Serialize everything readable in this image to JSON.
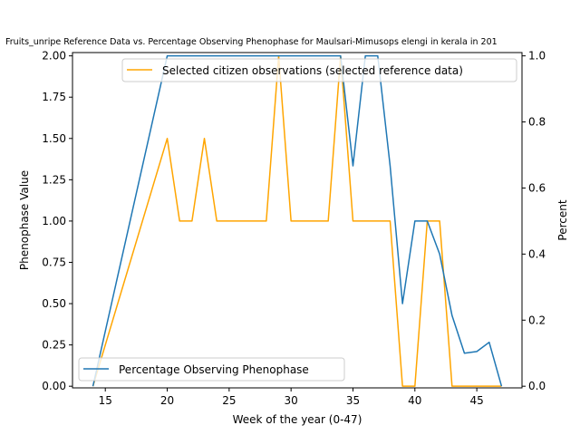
{
  "chart_data": {
    "type": "line",
    "title": "Fruits_unripe Reference Data vs. Percentage Observing Phenophase for Maulsari-Mimusops elengi in kerala in 201",
    "xlabel": "Week of the year (0-47)",
    "ylabel_left": "Phenophase Value",
    "ylabel_right": "Percent",
    "xlim": [
      12.35,
      48.65
    ],
    "ylim_left": [
      -0.01,
      2.02
    ],
    "ylim_right": [
      -0.005,
      1.01
    ],
    "x_ticks": [
      15,
      20,
      25,
      30,
      35,
      40,
      45
    ],
    "y_left_ticks": [
      "0.00",
      "0.25",
      "0.50",
      "0.75",
      "1.00",
      "1.25",
      "1.50",
      "1.75",
      "2.00"
    ],
    "y_right_ticks": [
      "0.0",
      "0.2",
      "0.4",
      "0.6",
      "0.8",
      "1.0"
    ],
    "grid": false,
    "series": [
      {
        "name": "Selected citizen observations (selected reference data)",
        "axis": "left",
        "color": "#ffa500",
        "legend_position": "upper-right",
        "points": [
          [
            14,
            0
          ],
          [
            20,
            1.5
          ],
          [
            21,
            1
          ],
          [
            22,
            1
          ],
          [
            23,
            1.5
          ],
          [
            24,
            1
          ],
          [
            25,
            1
          ],
          [
            26,
            1
          ],
          [
            27,
            1
          ],
          [
            28,
            1
          ],
          [
            29,
            2
          ],
          [
            30,
            1
          ],
          [
            31,
            1
          ],
          [
            32,
            1
          ],
          [
            33,
            1
          ],
          [
            34,
            2
          ],
          [
            35,
            1
          ],
          [
            36,
            1
          ],
          [
            37,
            1
          ],
          [
            38,
            1
          ],
          [
            39,
            0
          ],
          [
            40,
            0
          ],
          [
            41,
            1
          ],
          [
            42,
            1
          ],
          [
            43,
            0
          ],
          [
            44,
            0
          ],
          [
            45,
            0
          ],
          [
            46,
            0
          ],
          [
            47,
            0
          ]
        ]
      },
      {
        "name": "Percentage Observing Phenophase",
        "axis": "right",
        "color": "#1f77b4",
        "legend_position": "lower-left",
        "points": [
          [
            14,
            0
          ],
          [
            20,
            1
          ],
          [
            21,
            1
          ],
          [
            22,
            1
          ],
          [
            23,
            1
          ],
          [
            24,
            1
          ],
          [
            25,
            1
          ],
          [
            26,
            1
          ],
          [
            27,
            1
          ],
          [
            28,
            1
          ],
          [
            29,
            1
          ],
          [
            30,
            1
          ],
          [
            31,
            1
          ],
          [
            32,
            1
          ],
          [
            33,
            1
          ],
          [
            34,
            1
          ],
          [
            35,
            0.667
          ],
          [
            36,
            1
          ],
          [
            37,
            1
          ],
          [
            38,
            0.667
          ],
          [
            39,
            0.25
          ],
          [
            40,
            0.5
          ],
          [
            41,
            0.5
          ],
          [
            42,
            0.4
          ],
          [
            43,
            0.214
          ],
          [
            44,
            0.1
          ],
          [
            45,
            0.105
          ],
          [
            46,
            0.133
          ],
          [
            47,
            0
          ]
        ]
      }
    ]
  }
}
